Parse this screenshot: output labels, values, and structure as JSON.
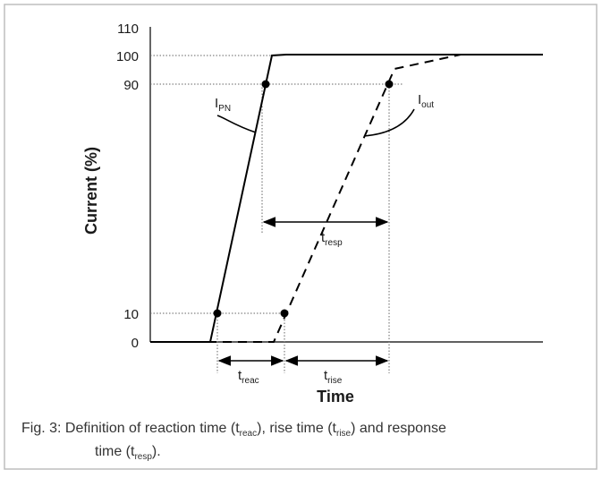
{
  "diagram": {
    "y_axis_title": "Current (%)",
    "x_axis_title": "Time",
    "y_ticks": [
      "110",
      "100",
      "90",
      "10",
      "0"
    ],
    "labels": {
      "i_pn": {
        "main": "I",
        "sub": "PN"
      },
      "i_out": {
        "main": "I",
        "sub": "out"
      },
      "t_resp": {
        "main": "t",
        "sub": "resp"
      },
      "t_reac": {
        "main": "t",
        "sub": "reac"
      },
      "t_rise": {
        "main": "t",
        "sub": "rise"
      }
    }
  },
  "caption": {
    "prefix": "Fig. 3: Definition of reaction time (t",
    "reac_sub": "reac",
    "mid1": "), rise time (t",
    "rise_sub": "rise",
    "mid2": ") and response",
    "line2_prefix": "time (t",
    "resp_sub": "resp",
    "line2_suffix": ")."
  }
}
